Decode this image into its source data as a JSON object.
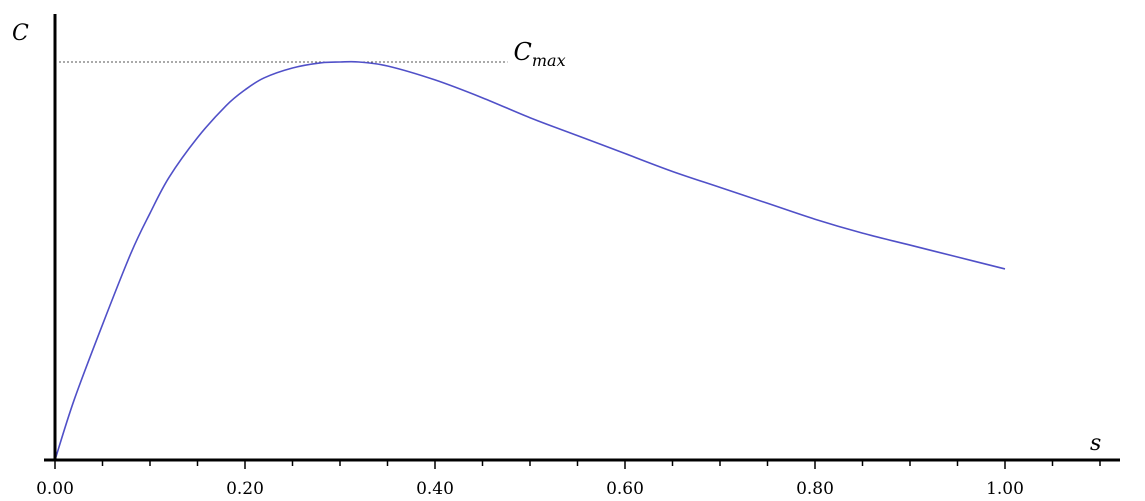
{
  "chart_data": {
    "type": "line",
    "title": "",
    "xlabel": "s",
    "ylabel": "C",
    "xlim": [
      0,
      1.15
    ],
    "ylim": [
      0,
      1.0
    ],
    "x_ticks": [
      0.0,
      0.2,
      0.4,
      0.6,
      0.8,
      1.0
    ],
    "x_tick_labels": [
      "0.00",
      "0.20",
      "0.40",
      "0.60",
      "0.80",
      "1.00"
    ],
    "grid": false,
    "legend": "none",
    "series": [
      {
        "color": "#5050c8",
        "x": [
          0.0,
          0.02,
          0.05,
          0.08,
          0.1,
          0.12,
          0.15,
          0.18,
          0.2,
          0.22,
          0.25,
          0.28,
          0.3,
          0.32,
          0.35,
          0.4,
          0.45,
          0.5,
          0.55,
          0.6,
          0.65,
          0.7,
          0.75,
          0.8,
          0.85,
          0.9,
          0.95,
          1.0
        ],
        "y": [
          0.0,
          0.15,
          0.34,
          0.52,
          0.62,
          0.71,
          0.81,
          0.89,
          0.93,
          0.96,
          0.985,
          0.998,
          1.0,
          1.0,
          0.99,
          0.955,
          0.91,
          0.86,
          0.815,
          0.77,
          0.725,
          0.685,
          0.645,
          0.605,
          0.57,
          0.54,
          0.51,
          0.48
        ]
      }
    ],
    "annotations": [
      {
        "text": "C",
        "subscript": "max",
        "y": 1.0,
        "reference_line": "dotted",
        "reference_x_end": 0.35
      }
    ]
  }
}
